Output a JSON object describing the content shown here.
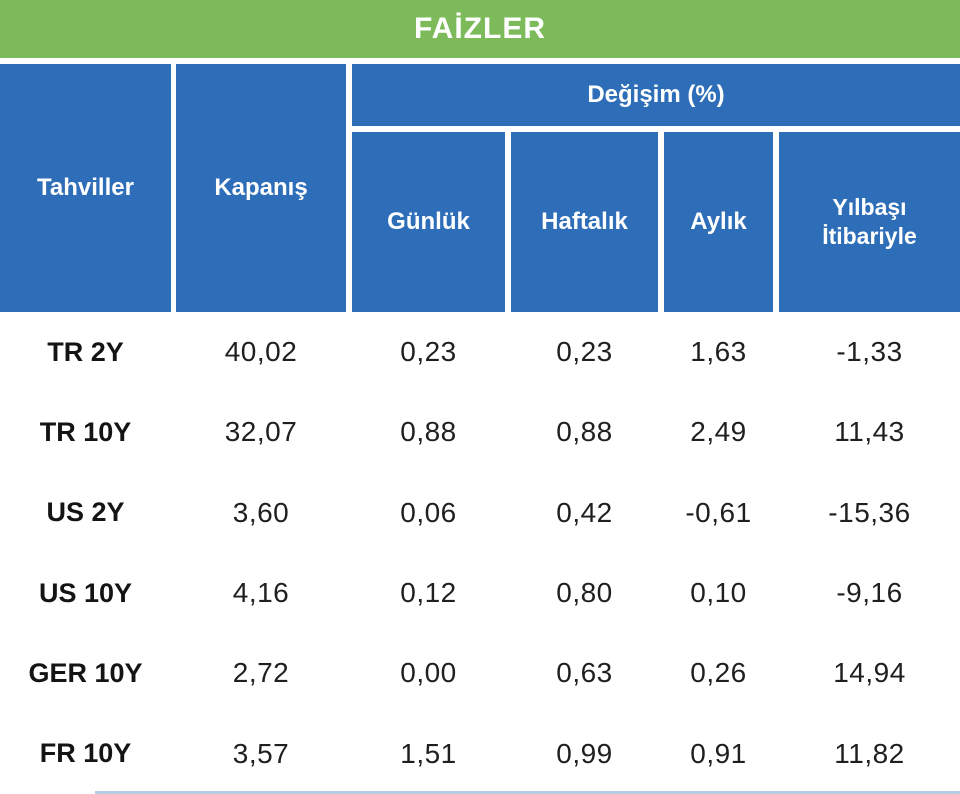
{
  "title": "FAİZLER",
  "colors": {
    "header_green": "#7dbb5a",
    "cell_blue": "#2e6eb8",
    "header_text": "#ffffff",
    "body_text": "#1f1f1f"
  },
  "table": {
    "headers": {
      "bonds": "Tahviller",
      "close": "Kapanış",
      "change_group": "Değişim (%)",
      "daily": "Günlük",
      "weekly": "Haftalık",
      "monthly": "Aylık",
      "ytd": "Yılbaşı İtibariyle"
    },
    "rows": [
      {
        "label": "TR 2Y",
        "close": "40,02",
        "daily": "0,23",
        "weekly": "0,23",
        "monthly": "1,63",
        "ytd": "-1,33"
      },
      {
        "label": "TR 10Y",
        "close": "32,07",
        "daily": "0,88",
        "weekly": "0,88",
        "monthly": "2,49",
        "ytd": "11,43"
      },
      {
        "label": "US 2Y",
        "close": "3,60",
        "daily": "0,06",
        "weekly": "0,42",
        "monthly": "-0,61",
        "ytd": "-15,36"
      },
      {
        "label": "US 10Y",
        "close": "4,16",
        "daily": "0,12",
        "weekly": "0,80",
        "monthly": "0,10",
        "ytd": "-9,16"
      },
      {
        "label": "GER 10Y",
        "close": "2,72",
        "daily": "0,00",
        "weekly": "0,63",
        "monthly": "0,26",
        "ytd": "14,94"
      },
      {
        "label": "FR 10Y",
        "close": "3,57",
        "daily": "1,51",
        "weekly": "0,99",
        "monthly": "0,91",
        "ytd": "11,82"
      }
    ]
  },
  "chart_data": {
    "type": "table",
    "title": "FAİZLER",
    "columns": [
      "Tahviller",
      "Kapanış",
      "Değişim (%) Günlük",
      "Değişim (%) Haftalık",
      "Değişim (%) Aylık",
      "Değişim (%) Yılbaşı İtibariyle"
    ],
    "rows": [
      [
        "TR 2Y",
        40.02,
        0.23,
        0.23,
        1.63,
        -1.33
      ],
      [
        "TR 10Y",
        32.07,
        0.88,
        0.88,
        2.49,
        11.43
      ],
      [
        "US 2Y",
        3.6,
        0.06,
        0.42,
        -0.61,
        -15.36
      ],
      [
        "US 10Y",
        4.16,
        0.12,
        0.8,
        0.1,
        -9.16
      ],
      [
        "GER 10Y",
        2.72,
        0.0,
        0.63,
        0.26,
        14.94
      ],
      [
        "FR 10Y",
        3.57,
        1.51,
        0.99,
        0.91,
        11.82
      ]
    ],
    "layout_hints": "Değişim (%) is a merged group header spanning the last four columns; decimal commas as displayed; Tahviller and Kapanış cells span both header rows."
  }
}
